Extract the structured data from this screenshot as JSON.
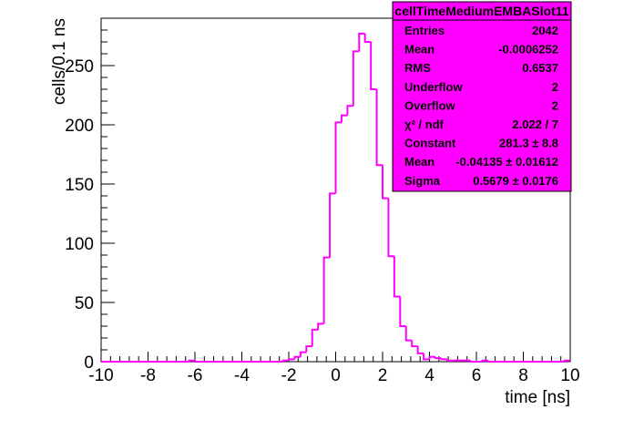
{
  "chart_data": {
    "type": "bar",
    "style": "histogram-step",
    "title": "cellTimeMediumEMBASlot11",
    "xlabel": "time [ns]",
    "ylabel": "cells/0.1 ns",
    "xlim": [
      -10,
      10
    ],
    "ylim": [
      0,
      290
    ],
    "x_ticks": [
      "-10",
      "-8",
      "-6",
      "-4",
      "-2",
      "0",
      "2",
      "4",
      "6",
      "8",
      "10"
    ],
    "y_ticks": [
      "0",
      "50",
      "100",
      "150",
      "200",
      "250"
    ],
    "line_color": "#ff00ff",
    "bin_width": 0.25,
    "bin_edges": [
      -10,
      -9.75,
      -9.5,
      -9.25,
      -9,
      -8.75,
      -8.5,
      -8.25,
      -8,
      -7.75,
      -7.5,
      -7.25,
      -7,
      -6.75,
      -6.5,
      -6.25,
      -6,
      -5.75,
      -5.5,
      -5.25,
      -5,
      -4.75,
      -4.5,
      -4.25,
      -4,
      -3.75,
      -3.5,
      -3.25,
      -3,
      -2.75,
      -2.5,
      -2.25,
      -2,
      -1.75,
      -1.5,
      -1.25,
      -1,
      -0.75,
      -0.5,
      -0.25,
      0,
      0.25,
      0.5,
      0.75,
      1,
      1.25,
      1.5,
      1.75,
      2,
      2.25,
      2.5,
      2.75,
      3,
      3.25,
      3.5,
      3.75,
      4,
      4.25,
      4.5,
      4.75,
      5,
      5.25,
      5.5,
      5.75,
      6,
      6.25,
      6.5,
      6.75,
      7,
      7.25,
      7.5,
      7.75,
      8,
      8.25,
      8.5,
      8.75,
      9,
      9.25,
      9.5,
      9.75,
      10
    ],
    "values": [
      0,
      0,
      0,
      0,
      0,
      0,
      0,
      0,
      0,
      0,
      0,
      0,
      0,
      0,
      0,
      1,
      0,
      0,
      0,
      0,
      0,
      0,
      0,
      0,
      0,
      0,
      0,
      0,
      0,
      0,
      0,
      1,
      2,
      4,
      8,
      13,
      27,
      32,
      88,
      142,
      202,
      208,
      216,
      262,
      277,
      270,
      230,
      166,
      138,
      89,
      55,
      30,
      18,
      13,
      7,
      2,
      4,
      3,
      2,
      1,
      1,
      1,
      1,
      0,
      0,
      1,
      0,
      0,
      0,
      0,
      0,
      0,
      0,
      0,
      0,
      0,
      0,
      0,
      0,
      1
    ],
    "stats_box": {
      "title": "cellTimeMediumEMBASlot11",
      "rows": [
        {
          "label": "Entries",
          "value": "2042"
        },
        {
          "label": "Mean",
          "value": "-0.0006252"
        },
        {
          "label": "RMS",
          "value": "0.6537"
        },
        {
          "label": "Underflow",
          "value": "2"
        },
        {
          "label": "Overflow",
          "value": "2"
        },
        {
          "label": "χ² / ndf",
          "value": "2.022 / 7"
        },
        {
          "label": "Constant",
          "value": "281.3 ± 8.8"
        },
        {
          "label": "Mean",
          "value": "-0.04135 ± 0.01612"
        },
        {
          "label": "Sigma",
          "value": "0.5679 ± 0.0176"
        }
      ],
      "fill_color": "#ff00ff",
      "placement": "top-right"
    }
  }
}
